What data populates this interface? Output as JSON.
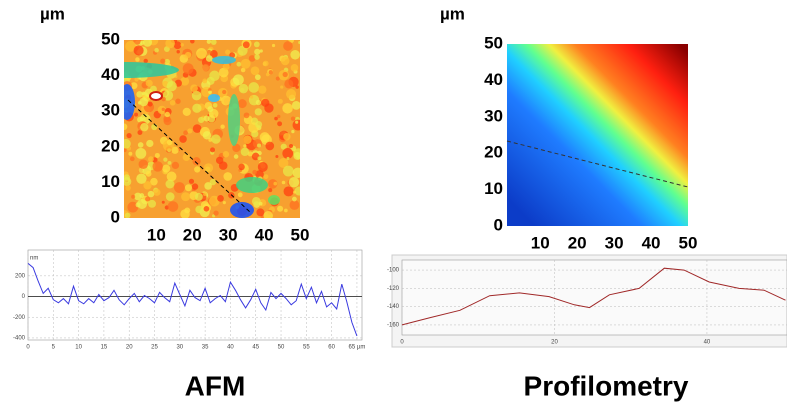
{
  "chart_data": [
    {
      "type": "heatmap",
      "unit_label": "µm",
      "xlim": [
        1,
        50
      ],
      "ylim": [
        0,
        50
      ],
      "xticks": [
        10,
        20,
        30,
        40,
        50
      ],
      "yticks": [
        0,
        10,
        20,
        30,
        40,
        50
      ]
    },
    {
      "type": "heatmap",
      "unit_label": "µm",
      "xlim": [
        1,
        50
      ],
      "ylim": [
        0,
        50
      ],
      "xticks": [
        10,
        20,
        30,
        40,
        50
      ],
      "yticks": [
        0,
        10,
        20,
        30,
        40,
        50
      ]
    },
    {
      "type": "line",
      "ylabel": "nm",
      "xlim": [
        0,
        66
      ],
      "ylim": [
        -420,
        450
      ],
      "xticks": [
        0,
        5,
        10,
        15,
        20,
        25,
        30,
        35,
        40,
        45,
        50,
        55,
        60,
        {
          "value": 65,
          "label": "65 µm"
        }
      ],
      "yticks": [
        200,
        0,
        -200,
        -400
      ],
      "grid": true,
      "series": [
        {
          "color": "#3a3ae0",
          "x": [
            0,
            1,
            2,
            3,
            4,
            5,
            6,
            7,
            8,
            9,
            10,
            11,
            12,
            13,
            14,
            15,
            16,
            17,
            18,
            19,
            20,
            21,
            22,
            23,
            24,
            25,
            26,
            27,
            28,
            29,
            30,
            31,
            32,
            33,
            34,
            35,
            36,
            37,
            38,
            39,
            40,
            41,
            42,
            43,
            44,
            45,
            46,
            47,
            48,
            49,
            50,
            51,
            52,
            53,
            54,
            55,
            56,
            57,
            58,
            59,
            60,
            61,
            62,
            63,
            64,
            65
          ],
          "values": [
            320,
            280,
            150,
            30,
            80,
            -30,
            -60,
            -20,
            -70,
            100,
            -40,
            -70,
            -20,
            -60,
            20,
            -40,
            -10,
            60,
            -30,
            -80,
            -20,
            30,
            -50,
            10,
            -20,
            -60,
            40,
            -10,
            -50,
            130,
            20,
            -90,
            60,
            -10,
            -40,
            80,
            -60,
            -20,
            10,
            -50,
            140,
            60,
            -30,
            -110,
            -30,
            70,
            -60,
            -130,
            40,
            -20,
            30,
            -20,
            -80,
            -40,
            120,
            -20,
            90,
            -60,
            50,
            -100,
            -60,
            -120,
            120,
            -50,
            -250,
            -380
          ]
        }
      ]
    },
    {
      "type": "line",
      "xlim": [
        0,
        50.5
      ],
      "ylim": [
        -171,
        -89
      ],
      "xticks": [
        0,
        20,
        40
      ],
      "yticks": [
        -100,
        -120,
        -140,
        -160
      ],
      "grid": true,
      "series": [
        {
          "color": "#a02828",
          "x": [
            0,
            3.7,
            7.6,
            11.5,
            15.4,
            19.3,
            22.6,
            24.6,
            27.2,
            31.1,
            34.4,
            37,
            40.3,
            44.2,
            47.5,
            50.3
          ],
          "values": [
            -160,
            -152,
            -144,
            -128,
            -125,
            -129,
            -138,
            -141,
            -127,
            -120,
            -98,
            -100,
            -113,
            -120,
            -122,
            -133
          ]
        }
      ]
    }
  ],
  "captions": [
    "AFM",
    "Profilometry"
  ]
}
